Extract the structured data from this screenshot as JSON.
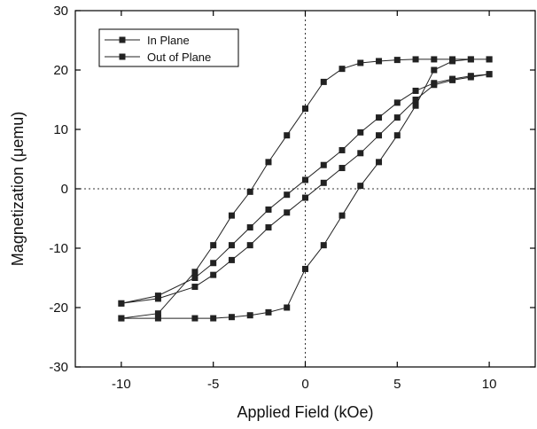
{
  "chart_data": {
    "type": "line",
    "title": "",
    "xlabel": "Applied Field (kOe)",
    "ylabel": "Magnetization (μemu)",
    "xlim": [
      -12.5,
      12.5
    ],
    "ylim": [
      -30,
      30
    ],
    "xticks": [
      -10,
      -5,
      0,
      5,
      10
    ],
    "xtick_labels": [
      "-10",
      "-5",
      "0",
      "5",
      "10"
    ],
    "yticks": [
      -30,
      -20,
      -10,
      0,
      10,
      20,
      30
    ],
    "ytick_labels": [
      "-30",
      "-20",
      "-10",
      "0",
      "10",
      "20",
      "30"
    ],
    "reference_lines": {
      "x": 0,
      "y": 0,
      "style": "dotted"
    },
    "legend_position": "top-left",
    "colors": {
      "series": "#222222",
      "axis": "#000000",
      "reference": "#333333"
    },
    "series": [
      {
        "name": "In Plane",
        "marker": "square",
        "x": [
          10,
          9,
          8,
          7,
          6,
          5,
          4,
          3,
          2,
          1,
          0,
          -1,
          -2,
          -3,
          -4,
          -5,
          -6,
          -8,
          -10,
          -10,
          -8,
          -6,
          -5,
          -4,
          -3,
          -2,
          -1,
          0,
          1,
          2,
          3,
          4,
          5,
          6,
          7,
          8,
          9,
          10
        ],
        "y": [
          19.3,
          19.0,
          18.5,
          17.8,
          16.5,
          14.5,
          12.0,
          9.5,
          6.5,
          4.0,
          1.5,
          -1.0,
          -3.5,
          -6.5,
          -9.5,
          -12.5,
          -15.0,
          -18.0,
          -19.3,
          -19.3,
          -18.5,
          -16.5,
          -14.5,
          -12.0,
          -9.5,
          -6.5,
          -4.0,
          -1.5,
          1.0,
          3.5,
          6.0,
          9.0,
          12.0,
          15.0,
          17.5,
          18.3,
          18.8,
          19.3
        ]
      },
      {
        "name": "Out of Plane",
        "marker": "square",
        "x": [
          10,
          9,
          8,
          7,
          6,
          5,
          4,
          3,
          2,
          1,
          0,
          -1,
          -2,
          -3,
          -4,
          -5,
          -6,
          -8,
          -10,
          -10,
          -8,
          -6,
          -5,
          -4,
          -3,
          -2,
          -1,
          0,
          1,
          2,
          3,
          4,
          5,
          6,
          7,
          8,
          9,
          10
        ],
        "y": [
          21.8,
          21.8,
          21.8,
          21.8,
          21.8,
          21.7,
          21.5,
          21.2,
          20.2,
          18.0,
          13.5,
          9.0,
          4.5,
          -0.5,
          -4.5,
          -9.5,
          -14.0,
          -21.0,
          -21.8,
          -21.8,
          -21.8,
          -21.8,
          -21.8,
          -21.6,
          -21.3,
          -20.8,
          -20.0,
          -13.5,
          -9.5,
          -4.5,
          0.5,
          4.5,
          9.0,
          14.0,
          20.0,
          21.5,
          21.8,
          21.8
        ]
      }
    ]
  }
}
